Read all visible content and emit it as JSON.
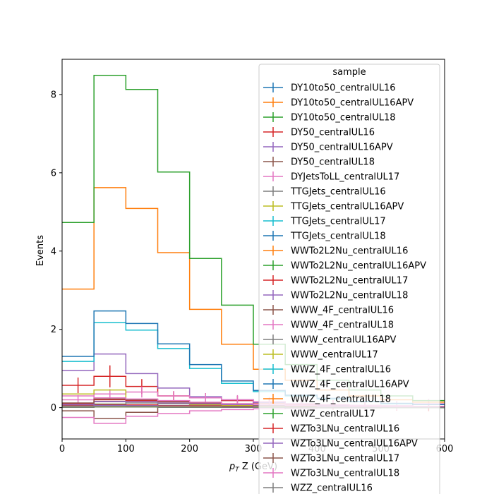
{
  "chart_data": {
    "type": "line",
    "title": "",
    "xlabel_prefix": "p",
    "xlabel_sub": "T",
    "xlabel_suffix": " Z (GeV)",
    "ylabel": "Events",
    "xlim": [
      0,
      600
    ],
    "ylim": [
      -0.8,
      8.9
    ],
    "xticks": [
      0,
      100,
      200,
      300,
      400,
      500,
      600
    ],
    "yticks": [
      0,
      2,
      4,
      6,
      8
    ],
    "grid": false,
    "legend_title": "sample",
    "legend_placement": "upper right",
    "bin_edges": [
      0,
      50,
      100,
      150,
      200,
      250,
      300,
      350,
      400,
      450,
      500,
      550,
      600
    ],
    "series": [
      {
        "name": "DY10to50_centralUL16",
        "color": "#1f77b4",
        "values": [
          0.05,
          0.08,
          0.06,
          0.05,
          0.04,
          0.03,
          0.03,
          0.02,
          0.02,
          0.01,
          0.01,
          0.01
        ]
      },
      {
        "name": "DY10to50_centralUL16APV",
        "color": "#ff7f0e",
        "values": [
          0.04,
          0.07,
          0.05,
          0.04,
          0.03,
          0.03,
          0.02,
          0.02,
          0.01,
          0.01,
          0.01,
          0.01
        ]
      },
      {
        "name": "DY10to50_centralUL18",
        "color": "#2ca02c",
        "values": [
          0.06,
          0.09,
          0.07,
          0.05,
          0.04,
          0.03,
          0.03,
          0.02,
          0.02,
          0.01,
          0.01,
          0.01
        ]
      },
      {
        "name": "DY50_centralUL16",
        "color": "#d62728",
        "values": [
          0.57,
          0.8,
          0.54,
          0.3,
          0.25,
          0.18,
          0.12,
          0.09,
          0.07,
          0.05,
          0.04,
          0.03
        ],
        "errors": true
      },
      {
        "name": "DY50_centralUL16APV",
        "color": "#9467bd",
        "values": [
          0.95,
          1.37,
          0.87,
          0.5,
          0.28,
          0.2,
          0.13,
          0.1,
          0.07,
          0.05,
          0.04,
          0.03
        ]
      },
      {
        "name": "DY50_centralUL18",
        "color": "#8c564b",
        "values": [
          -0.08,
          -0.28,
          -0.12,
          0.02,
          0.05,
          0.04,
          0.03,
          0.02,
          0.02,
          0.01,
          0.01,
          0.01
        ]
      },
      {
        "name": "DYJetsToLL_centralUL17",
        "color": "#e377c2",
        "values": [
          0.2,
          0.35,
          0.4,
          0.3,
          0.25,
          0.2,
          0.15,
          0.1,
          0.08,
          0.06,
          0.05,
          0.1
        ],
        "errors": true
      },
      {
        "name": "TTGJets_centralUL16",
        "color": "#7f7f7f",
        "values": [
          0.1,
          0.15,
          0.12,
          0.1,
          0.08,
          0.06,
          0.05,
          0.04,
          0.03,
          0.02,
          0.02,
          0.01
        ]
      },
      {
        "name": "TTGJets_centralUL16APV",
        "color": "#bcbd22",
        "values": [
          0.35,
          0.45,
          0.2,
          0.12,
          0.08,
          0.06,
          0.05,
          0.04,
          0.03,
          0.02,
          0.02,
          0.01
        ]
      },
      {
        "name": "TTGJets_centralUL17",
        "color": "#17becf",
        "values": [
          1.18,
          2.17,
          1.98,
          1.51,
          1.0,
          0.62,
          0.41,
          0.3,
          0.22,
          0.15,
          0.1,
          0.08
        ]
      },
      {
        "name": "TTGJets_centralUL18",
        "color": "#1f77b4",
        "values": [
          1.31,
          2.47,
          2.15,
          1.63,
          1.1,
          0.68,
          0.44,
          0.32,
          0.24,
          0.16,
          0.11,
          0.08
        ]
      },
      {
        "name": "WWTo2L2Nu_centralUL16",
        "color": "#ff7f0e",
        "values": [
          3.03,
          5.62,
          5.09,
          3.96,
          2.51,
          1.62,
          0.98,
          0.7,
          0.45,
          0.3,
          0.2,
          0.14
        ]
      },
      {
        "name": "WWTo2L2Nu_centralUL16APV",
        "color": "#2ca02c",
        "values": [
          4.73,
          8.49,
          8.13,
          6.02,
          3.81,
          2.62,
          1.62,
          1.1,
          0.7,
          0.45,
          0.3,
          0.18
        ]
      },
      {
        "name": "WWTo2L2Nu_centralUL17",
        "color": "#d62728",
        "values": [
          0.05,
          0.08,
          0.07,
          0.05,
          0.04,
          0.03,
          0.02,
          0.02,
          0.01,
          0.01,
          0.01,
          0.01
        ]
      },
      {
        "name": "WWTo2L2Nu_centralUL18",
        "color": "#9467bd",
        "values": [
          0.04,
          0.06,
          0.05,
          0.04,
          0.03,
          0.02,
          0.02,
          0.01,
          0.01,
          0.01,
          0.01,
          0.01
        ]
      },
      {
        "name": "WWW_4F_centralUL16",
        "color": "#8c564b",
        "values": [
          0.02,
          0.03,
          0.03,
          0.02,
          0.02,
          0.01,
          0.01,
          0.01,
          0.01,
          0.01,
          0.01,
          0.0
        ]
      },
      {
        "name": "WWW_4F_centralUL18",
        "color": "#e377c2",
        "values": [
          -0.25,
          -0.4,
          -0.22,
          -0.15,
          -0.08,
          -0.05,
          -0.03,
          -0.02,
          -0.01,
          -0.01,
          0.0,
          0.0
        ]
      },
      {
        "name": "WWW_centralUL16APV",
        "color": "#7f7f7f",
        "values": [
          0.02,
          0.03,
          0.02,
          0.02,
          0.01,
          0.01,
          0.01,
          0.01,
          0.01,
          0.0,
          0.0,
          0.0
        ]
      },
      {
        "name": "WWW_centralUL17",
        "color": "#bcbd22",
        "values": [
          0.02,
          0.03,
          0.03,
          0.02,
          0.02,
          0.01,
          0.01,
          0.01,
          0.01,
          0.0,
          0.0,
          0.0
        ]
      },
      {
        "name": "WWZ_4F_centralUL16",
        "color": "#17becf",
        "values": [
          0.01,
          0.02,
          0.02,
          0.02,
          0.01,
          0.01,
          0.01,
          0.01,
          0.0,
          0.0,
          0.0,
          0.0
        ]
      },
      {
        "name": "WWZ_4F_centralUL16APV",
        "color": "#1f77b4",
        "values": [
          0.01,
          0.02,
          0.02,
          0.01,
          0.01,
          0.01,
          0.01,
          0.0,
          0.0,
          0.0,
          0.0,
          0.0
        ]
      },
      {
        "name": "WWZ_4F_centralUL18",
        "color": "#ff7f0e",
        "values": [
          0.01,
          0.02,
          0.02,
          0.02,
          0.01,
          0.01,
          0.01,
          0.01,
          0.0,
          0.0,
          0.0,
          0.0
        ]
      },
      {
        "name": "WWZ_centralUL17",
        "color": "#2ca02c",
        "values": [
          0.01,
          0.02,
          0.02,
          0.01,
          0.01,
          0.01,
          0.01,
          0.0,
          0.0,
          0.0,
          0.0,
          0.0
        ]
      },
      {
        "name": "WZTo3LNu_centralUL16",
        "color": "#d62728",
        "values": [
          0.1,
          0.2,
          0.18,
          0.15,
          0.12,
          0.09,
          0.07,
          0.05,
          0.04,
          0.03,
          0.02,
          0.02
        ]
      },
      {
        "name": "WZTo3LNu_centralUL16APV",
        "color": "#9467bd",
        "values": [
          0.08,
          0.16,
          0.15,
          0.12,
          0.1,
          0.08,
          0.06,
          0.04,
          0.03,
          0.02,
          0.02,
          0.01
        ]
      },
      {
        "name": "WZTo3LNu_centralUL17",
        "color": "#8c564b",
        "values": [
          0.12,
          0.22,
          0.2,
          0.16,
          0.13,
          0.1,
          0.07,
          0.05,
          0.04,
          0.03,
          0.02,
          0.02
        ]
      },
      {
        "name": "WZTo3LNu_centralUL18",
        "color": "#e377c2",
        "values": [
          0.3,
          0.25,
          0.22,
          0.18,
          0.14,
          0.1,
          0.08,
          0.06,
          0.04,
          0.03,
          0.02,
          0.02
        ]
      },
      {
        "name": "WZZ_centralUL16",
        "color": "#7f7f7f",
        "values": [
          0.01,
          0.02,
          0.02,
          0.01,
          0.01,
          0.01,
          0.01,
          0.0,
          0.0,
          0.0,
          0.0,
          0.0
        ]
      }
    ]
  }
}
